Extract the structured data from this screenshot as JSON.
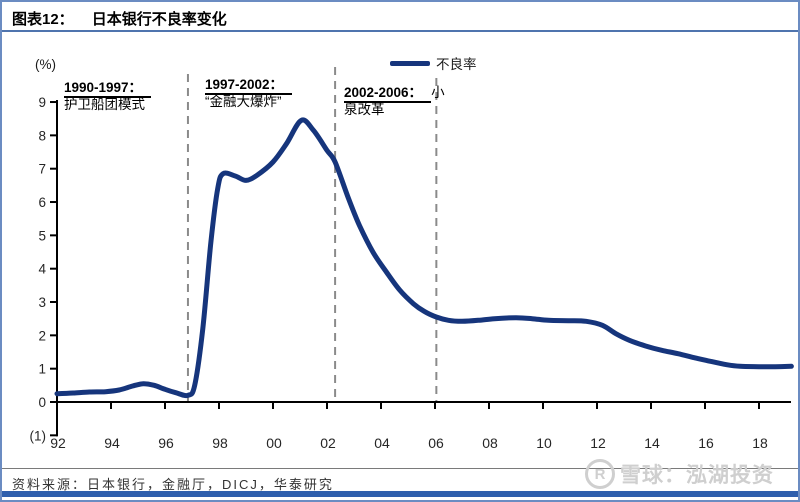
{
  "header": {
    "label": "图表12：",
    "title": "日本银行不良率变化"
  },
  "legend": {
    "series_label": "不良率"
  },
  "y_unit": "(%)",
  "annotations": [
    {
      "date": "1990-1997：",
      "suffix": "",
      "desc": "护卫船团模式"
    },
    {
      "date": "1997-2002：",
      "suffix": "",
      "desc": "“金融大爆炸”"
    },
    {
      "date": "2002-2006：",
      "suffix": "小",
      "desc": "泉改革"
    }
  ],
  "footer": {
    "source": "资料来源：日本银行，金融厅，DICJ，华泰研究"
  },
  "watermark": {
    "logo_glyph": "R",
    "text": "雪球：泓湖投资"
  },
  "colors": {
    "line": "#16357c",
    "frame_blue": "#4f74ae",
    "bottom_bar": "#2f5fad",
    "dashed": "#8a8a8a",
    "axis": "#000000",
    "tick_label": "#262626",
    "watermark": "#cfcfcf"
  },
  "chart_data": {
    "type": "line",
    "title": "日本银行不良率变化",
    "ylabel": "(%)",
    "xlabel": "",
    "ylim": [
      -1,
      9
    ],
    "xlim": [
      1992,
      2019.3
    ],
    "grid": false,
    "legend_position": "top-center",
    "y_ticks": [
      {
        "value": 9,
        "label": "9"
      },
      {
        "value": 8,
        "label": "8"
      },
      {
        "value": 7,
        "label": "7"
      },
      {
        "value": 6,
        "label": "6"
      },
      {
        "value": 5,
        "label": "5"
      },
      {
        "value": 4,
        "label": "4"
      },
      {
        "value": 3,
        "label": "3"
      },
      {
        "value": 2,
        "label": "2"
      },
      {
        "value": 1,
        "label": "1"
      },
      {
        "value": 0,
        "label": "0"
      },
      {
        "value": -1,
        "label": "(1)"
      }
    ],
    "x_ticks": [
      {
        "value": 1992,
        "label": "92"
      },
      {
        "value": 1994,
        "label": "94"
      },
      {
        "value": 1996,
        "label": "96"
      },
      {
        "value": 1998,
        "label": "98"
      },
      {
        "value": 2000,
        "label": "00"
      },
      {
        "value": 2002,
        "label": "02"
      },
      {
        "value": 2004,
        "label": "04"
      },
      {
        "value": 2006,
        "label": "06"
      },
      {
        "value": 2008,
        "label": "08"
      },
      {
        "value": 2010,
        "label": "10"
      },
      {
        "value": 2012,
        "label": "12"
      },
      {
        "value": 2014,
        "label": "14"
      },
      {
        "value": 2016,
        "label": "16"
      },
      {
        "value": 2018,
        "label": "18"
      }
    ],
    "dashed_vlines": [
      1996.85,
      2002.3,
      2006.05
    ],
    "periods": [
      {
        "range": "1990-1997",
        "label": "护卫船团模式"
      },
      {
        "range": "1997-2002",
        "label": "“金融大爆炸”"
      },
      {
        "range": "2002-2006",
        "label": "小泉改革"
      }
    ],
    "series": [
      {
        "name": "不良率",
        "color": "#16357c",
        "points": [
          [
            1992.0,
            0.25
          ],
          [
            1992.6,
            0.27
          ],
          [
            1993.2,
            0.3
          ],
          [
            1993.8,
            0.31
          ],
          [
            1994.3,
            0.36
          ],
          [
            1994.8,
            0.48
          ],
          [
            1995.2,
            0.55
          ],
          [
            1995.6,
            0.5
          ],
          [
            1996.0,
            0.38
          ],
          [
            1996.4,
            0.28
          ],
          [
            1996.85,
            0.2
          ],
          [
            1997.1,
            0.5
          ],
          [
            1997.4,
            2.2
          ],
          [
            1997.7,
            4.8
          ],
          [
            1997.95,
            6.4
          ],
          [
            1998.15,
            6.85
          ],
          [
            1998.6,
            6.78
          ],
          [
            1999.0,
            6.65
          ],
          [
            1999.4,
            6.8
          ],
          [
            2000.0,
            7.2
          ],
          [
            2000.5,
            7.75
          ],
          [
            2001.05,
            8.45
          ],
          [
            2001.5,
            8.15
          ],
          [
            2002.0,
            7.55
          ],
          [
            2002.3,
            7.2
          ],
          [
            2002.8,
            6.1
          ],
          [
            2003.2,
            5.3
          ],
          [
            2003.7,
            4.5
          ],
          [
            2004.2,
            3.9
          ],
          [
            2004.7,
            3.35
          ],
          [
            2005.2,
            2.95
          ],
          [
            2005.6,
            2.72
          ],
          [
            2006.05,
            2.55
          ],
          [
            2006.5,
            2.45
          ],
          [
            2007.0,
            2.42
          ],
          [
            2007.6,
            2.45
          ],
          [
            2008.2,
            2.5
          ],
          [
            2009.0,
            2.53
          ],
          [
            2009.6,
            2.5
          ],
          [
            2010.2,
            2.45
          ],
          [
            2011.0,
            2.44
          ],
          [
            2011.6,
            2.42
          ],
          [
            2012.2,
            2.3
          ],
          [
            2012.7,
            2.05
          ],
          [
            2013.2,
            1.85
          ],
          [
            2013.8,
            1.68
          ],
          [
            2014.4,
            1.55
          ],
          [
            2015.0,
            1.45
          ],
          [
            2015.6,
            1.33
          ],
          [
            2016.2,
            1.22
          ],
          [
            2016.8,
            1.12
          ],
          [
            2017.3,
            1.07
          ],
          [
            2018.0,
            1.06
          ],
          [
            2018.6,
            1.06
          ],
          [
            2019.2,
            1.07
          ]
        ]
      }
    ]
  }
}
